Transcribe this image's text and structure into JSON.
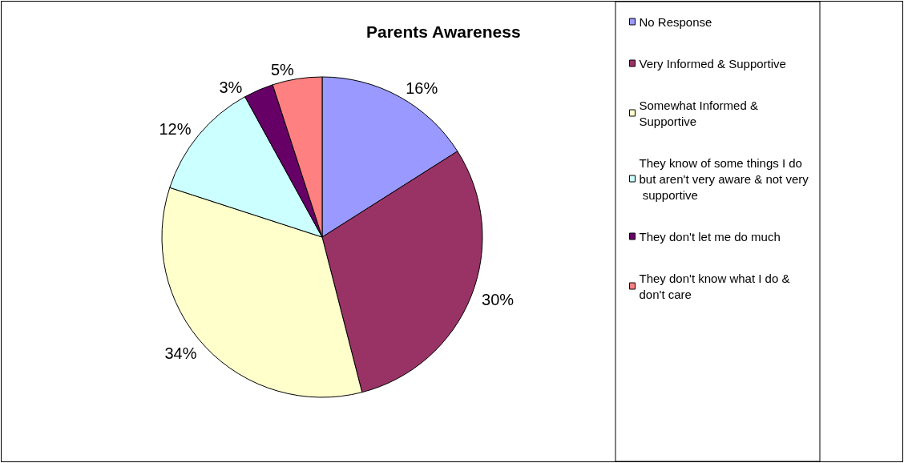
{
  "chart_data": {
    "type": "pie",
    "title": "Parents Awareness",
    "categories": [
      "No Response",
      "Very Informed & Supportive",
      "Somewhat Informed & Supportive",
      "They know of some things I do but aren't very aware & not very supportive",
      "They don't let me do much",
      "They don't know what I do & don't care"
    ],
    "values": [
      16,
      30,
      34,
      12,
      3,
      5
    ],
    "colors": [
      "#9999ff",
      "#993366",
      "#ffffcc",
      "#ccffff",
      "#660066",
      "#ff8080"
    ],
    "value_labels": [
      "16%",
      "30%",
      "34%",
      "12%",
      "3%",
      "5%"
    ],
    "legend": "right"
  }
}
